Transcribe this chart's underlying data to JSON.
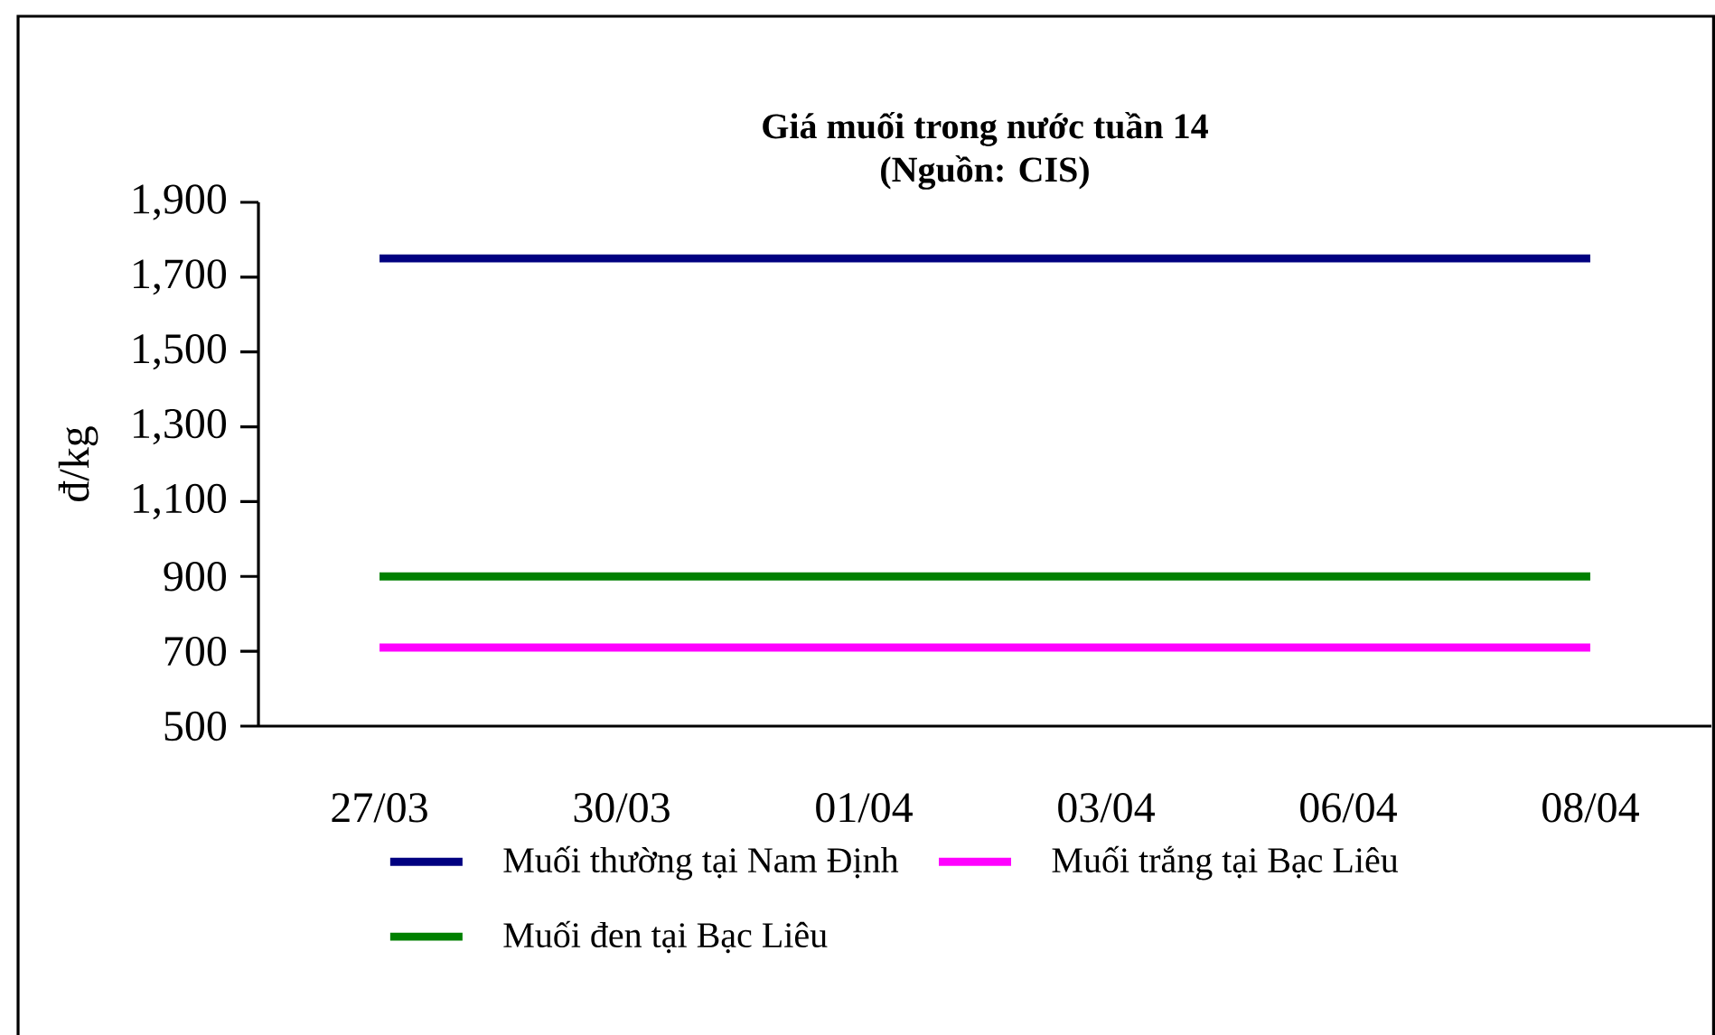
{
  "chart_data": {
    "type": "line",
    "title": "Giá muối trong nước tuần 14",
    "subtitle": "(Nguồn: CIS)",
    "ylabel": "đ/kg",
    "categories": [
      "27/03",
      "30/03",
      "01/04",
      "03/04",
      "06/04",
      "08/04"
    ],
    "series": [
      {
        "name": "Muối thường tại Nam Định",
        "color": "#000080",
        "values": [
          1750,
          1750,
          1750,
          1750,
          1750,
          1750
        ]
      },
      {
        "name": "Muối trắng tại Bạc Liêu",
        "color": "#ff00ff",
        "values": [
          710,
          710,
          710,
          710,
          710,
          710
        ]
      },
      {
        "name": "Muối đen tại Bạc Liêu",
        "color": "#008000",
        "values": [
          900,
          900,
          900,
          900,
          900,
          900
        ]
      }
    ],
    "ylim": [
      500,
      1900
    ],
    "yticks": [
      {
        "value": 500,
        "label": "500"
      },
      {
        "value": 700,
        "label": "700"
      },
      {
        "value": 900,
        "label": "900"
      },
      {
        "value": 1100,
        "label": "1,100"
      },
      {
        "value": 1300,
        "label": "1,300"
      },
      {
        "value": 1500,
        "label": "1,500"
      },
      {
        "value": 1700,
        "label": "1,700"
      },
      {
        "value": 1900,
        "label": "1,900"
      }
    ],
    "grid": false,
    "legend": "bottom",
    "marker": "none",
    "line_style": "solid"
  }
}
